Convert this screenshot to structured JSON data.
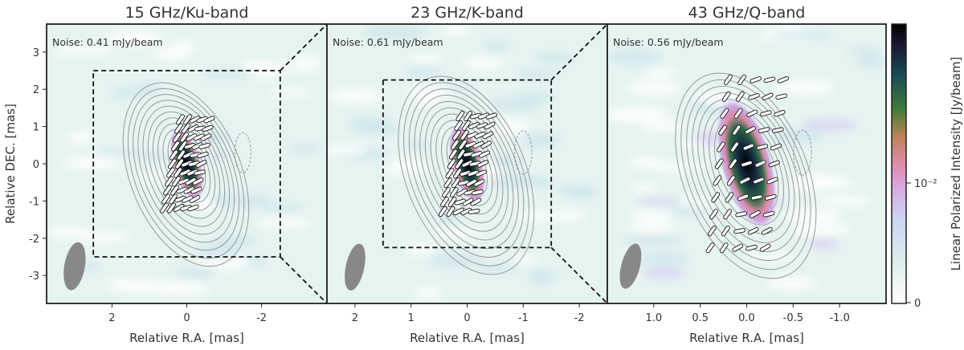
{
  "chart_data": {
    "type": "heatmap",
    "ylabel": "Relative DEC. [mas]",
    "colorbar": {
      "label": "Linear Polarized Intensity [Jy/beam]",
      "ticks": [
        {
          "label": "0",
          "value": 0
        },
        {
          "label": "10⁻²",
          "value": 0.01
        }
      ],
      "colors": [
        "#ffffff",
        "#dff2ee",
        "#c9d6f0",
        "#d8a6e0",
        "#e08aa8",
        "#b88358",
        "#3f7a3a",
        "#174a55",
        "#1a1630",
        "#000000"
      ]
    },
    "panels": [
      {
        "title": "15 GHz/Ku-band",
        "noise": "Noise: 0.41 mJy/beam",
        "xlabel": "Relative R.A. [mas]",
        "xlim": [
          3.75,
          -3.75
        ],
        "ylim": [
          -3.75,
          3.75
        ],
        "xticks": [
          {
            "v": 2,
            "label": "2"
          },
          {
            "v": 0,
            "label": "0"
          },
          {
            "v": -2,
            "label": "-2"
          }
        ],
        "yticks": [
          {
            "v": 3,
            "label": "3"
          },
          {
            "v": 2,
            "label": "2"
          },
          {
            "v": 1,
            "label": "1"
          },
          {
            "v": 0,
            "label": "0"
          },
          {
            "v": -1,
            "label": "-1"
          },
          {
            "v": -2,
            "label": "-2"
          },
          {
            "v": -3,
            "label": "-3"
          }
        ],
        "zoom_box": [
          2.5,
          -2.5,
          -2.5,
          2.5
        ],
        "beam": {
          "ra": 3.0,
          "dec": -2.75,
          "major": 1.3,
          "minor": 0.55,
          "pa": 10
        }
      },
      {
        "title": "23 GHz/K-band",
        "noise": "Noise: 0.61 mJy/beam",
        "xlabel": "Relative R.A. [mas]",
        "xlim": [
          2.5,
          -2.5
        ],
        "ylim": [
          -2.5,
          2.5
        ],
        "xticks": [
          {
            "v": 2,
            "label": "2"
          },
          {
            "v": 1,
            "label": "1"
          },
          {
            "v": 0,
            "label": "0"
          },
          {
            "v": -1,
            "label": "-1"
          },
          {
            "v": -2,
            "label": "-2"
          }
        ],
        "zoom_box": [
          1.5,
          -1.5,
          -1.5,
          1.5
        ],
        "beam": {
          "ra": 2.0,
          "dec": -1.85,
          "major": 0.85,
          "minor": 0.33,
          "pa": 12
        }
      },
      {
        "title": "43 GHz/Q-band",
        "noise": "Noise: 0.56 mJy/beam",
        "xlabel": "Relative R.A. [mas]",
        "xlim": [
          1.5,
          -1.5
        ],
        "ylim": [
          -1.5,
          1.5
        ],
        "xticks": [
          {
            "v": 1.0,
            "label": "1.0"
          },
          {
            "v": 0.5,
            "label": "0.5"
          },
          {
            "v": 0.0,
            "label": "0.0"
          },
          {
            "v": -0.5,
            "label": "-0.5"
          },
          {
            "v": -1.0,
            "label": "-1.0"
          }
        ],
        "beam": {
          "ra": 1.25,
          "dec": -1.1,
          "major": 0.5,
          "minor": 0.2,
          "pa": 15
        }
      }
    ]
  }
}
